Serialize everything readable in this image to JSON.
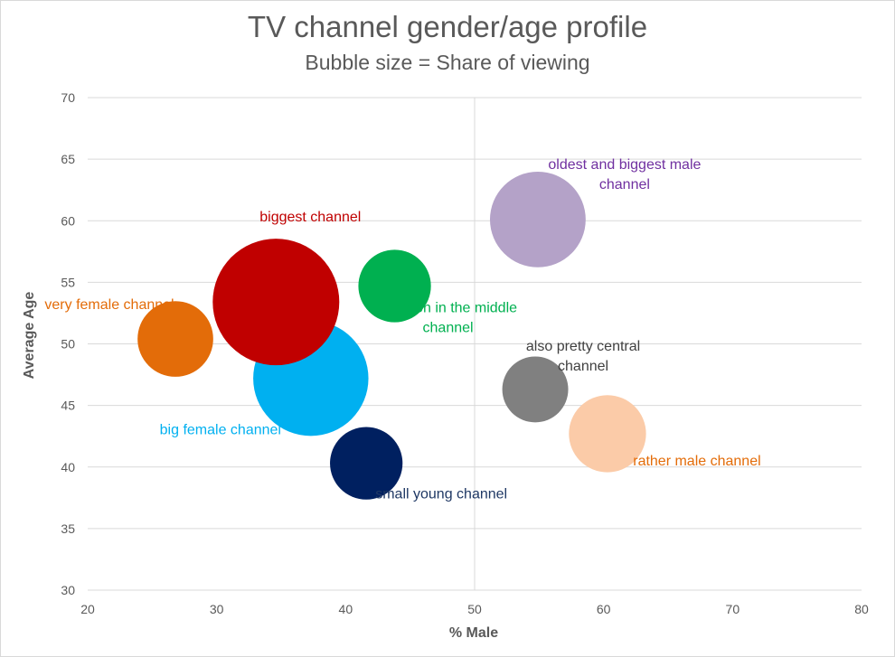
{
  "chart_data": {
    "type": "bubble",
    "title": "TV channel gender/age profile",
    "subtitle": "Bubble size = Share of viewing",
    "xlabel": "% Male",
    "ylabel": "Average Age",
    "xlim": [
      20,
      80
    ],
    "ylim": [
      30,
      70
    ],
    "xticks": [
      "20",
      "30",
      "40",
      "50",
      "60",
      "70",
      "80"
    ],
    "yticks": [
      "30",
      "35",
      "40",
      "45",
      "50",
      "55",
      "60",
      "65",
      "70"
    ],
    "grid": "horizontal",
    "reference_line_x": 50,
    "bubbles": [
      {
        "label": [
          "big female channel"
        ],
        "x": 37.3,
        "y": 47.2,
        "size": 58,
        "color": "#00b0f0"
      },
      {
        "label": [
          "biggest channel"
        ],
        "x": 34.6,
        "y": 53.4,
        "size": 70,
        "color": "#c00000"
      },
      {
        "label": [
          "very female channel"
        ],
        "x": 26.8,
        "y": 50.4,
        "size": 25,
        "color": "#e36c09"
      },
      {
        "label": [
          "bang on in the middle",
          "channel"
        ],
        "x": 43.8,
        "y": 54.7,
        "size": 23,
        "color": "#00b050"
      },
      {
        "label": [
          "small young channel"
        ],
        "x": 41.6,
        "y": 40.3,
        "size": 23,
        "color": "#002060"
      },
      {
        "label": [
          "oldest and biggest male",
          "channel"
        ],
        "x": 54.9,
        "y": 60.1,
        "size": 40,
        "color": "#b4a2c8"
      },
      {
        "label": [
          "also pretty central",
          "channel"
        ],
        "x": 54.7,
        "y": 46.3,
        "size": 19,
        "color": "#808080"
      },
      {
        "label": [
          "rather male channel"
        ],
        "x": 60.3,
        "y": 42.7,
        "size": 26,
        "color": "#fbcba8"
      }
    ],
    "label_colors": [
      "#00b0f0",
      "#c00000",
      "#e36c09",
      "#00b050",
      "#1f3864",
      "#7030a0",
      "#404040",
      "#e36c09"
    ]
  }
}
